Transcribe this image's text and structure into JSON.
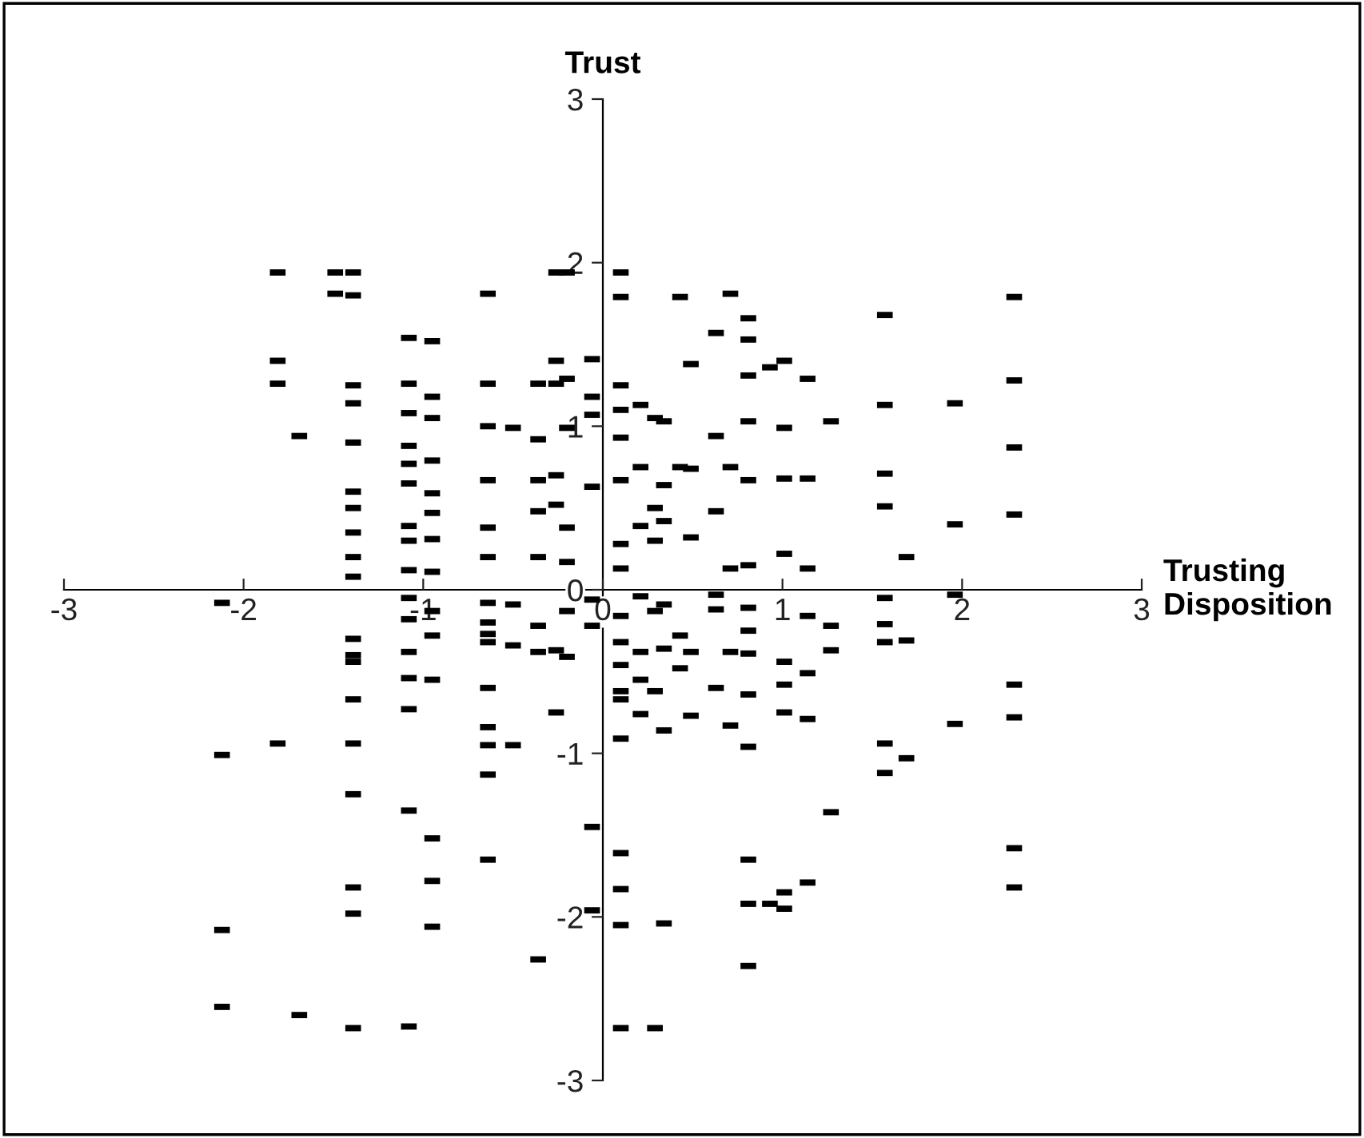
{
  "chart_data": {
    "type": "scatter",
    "xlabel": "Trusting\nDisposition",
    "ylabel": "Trust",
    "xlim": [
      -3,
      3
    ],
    "ylim": [
      -3,
      3
    ],
    "xticks": [
      -3,
      -2,
      -1,
      0,
      1,
      2,
      3
    ],
    "yticks": [
      -3,
      -2,
      -1,
      0,
      1,
      2,
      3
    ],
    "grid": false,
    "series": [
      {
        "color": "#000000",
        "x": [
          -2.12,
          -2.12,
          -2.12,
          -2.12,
          -1.81,
          -1.81,
          -1.81,
          -1.81,
          -1.69,
          -1.69,
          -1.49,
          -1.49,
          -1.39,
          -1.39,
          -1.39,
          -1.39,
          -1.39,
          -1.39,
          -1.39,
          -1.39,
          -1.39,
          -1.39,
          -1.39,
          -1.39,
          -1.39,
          -1.39,
          -1.39,
          -1.39,
          -1.39,
          -1.39,
          -1.39,
          -1.08,
          -1.08,
          -1.08,
          -1.08,
          -1.08,
          -1.08,
          -1.08,
          -1.08,
          -1.08,
          -1.08,
          -1.08,
          -1.08,
          -1.08,
          -1.08,
          -1.08,
          -1.08,
          -0.95,
          -0.95,
          -0.95,
          -0.95,
          -0.95,
          -0.95,
          -0.95,
          -0.95,
          -0.95,
          -0.95,
          -0.95,
          -0.95,
          -0.95,
          -0.95,
          -0.64,
          -0.64,
          -0.64,
          -0.64,
          -0.64,
          -0.64,
          -0.64,
          -0.64,
          -0.64,
          -0.64,
          -0.64,
          -0.64,
          -0.64,
          -0.64,
          -0.64,
          -0.5,
          -0.5,
          -0.5,
          -0.5,
          -0.36,
          -0.36,
          -0.36,
          -0.36,
          -0.36,
          -0.36,
          -0.36,
          -0.36,
          -0.26,
          -0.26,
          -0.26,
          -0.26,
          -0.26,
          -0.26,
          -0.26,
          -0.2,
          -0.2,
          -0.2,
          -0.2,
          -0.2,
          -0.2,
          -0.2,
          -0.06,
          -0.06,
          -0.06,
          -0.06,
          -0.06,
          -0.06,
          -0.06,
          -0.06,
          0.1,
          0.1,
          0.1,
          0.1,
          0.1,
          0.1,
          0.1,
          0.1,
          0.1,
          0.1,
          0.1,
          0.1,
          0.1,
          0.1,
          0.1,
          0.1,
          0.1,
          0.1,
          0.21,
          0.21,
          0.21,
          0.21,
          0.21,
          0.21,
          0.21,
          0.29,
          0.29,
          0.29,
          0.29,
          0.29,
          0.29,
          0.34,
          0.34,
          0.34,
          0.34,
          0.34,
          0.34,
          0.34,
          0.43,
          0.43,
          0.43,
          0.43,
          0.49,
          0.49,
          0.49,
          0.49,
          0.49,
          0.63,
          0.63,
          0.63,
          0.63,
          0.63,
          0.63,
          0.71,
          0.71,
          0.71,
          0.71,
          0.71,
          0.81,
          0.81,
          0.81,
          0.81,
          0.81,
          0.81,
          0.81,
          0.81,
          0.81,
          0.81,
          0.81,
          0.81,
          0.81,
          0.81,
          0.93,
          0.93,
          1.01,
          1.01,
          1.01,
          1.01,
          1.01,
          1.01,
          1.01,
          1.01,
          1.01,
          1.14,
          1.14,
          1.14,
          1.14,
          1.14,
          1.14,
          1.14,
          1.27,
          1.27,
          1.27,
          1.27,
          1.57,
          1.57,
          1.57,
          1.57,
          1.57,
          1.57,
          1.57,
          1.57,
          1.57,
          1.69,
          1.69,
          1.69,
          1.96,
          1.96,
          1.96,
          1.96,
          2.29,
          2.29,
          2.29,
          2.29,
          2.29,
          2.29,
          2.29,
          2.29
        ],
        "values": [
          -0.08,
          -1.01,
          -2.08,
          -2.55,
          1.94,
          1.4,
          1.26,
          -0.94,
          0.94,
          -2.6,
          1.94,
          1.81,
          1.94,
          1.8,
          1.25,
          1.14,
          0.9,
          0.6,
          0.5,
          0.35,
          0.2,
          0.08,
          -0.3,
          -0.4,
          -0.44,
          -0.67,
          -0.94,
          -1.25,
          -1.82,
          -1.98,
          -2.68,
          1.54,
          1.26,
          1.08,
          0.88,
          0.77,
          0.65,
          0.39,
          0.3,
          0.12,
          -0.05,
          -0.18,
          -0.38,
          -0.54,
          -0.73,
          -1.35,
          -2.67,
          1.52,
          1.18,
          1.05,
          0.79,
          0.59,
          0.47,
          0.31,
          0.11,
          -0.13,
          -0.28,
          -0.55,
          -1.52,
          -1.78,
          -2.06,
          1.81,
          1.26,
          1.0,
          0.67,
          0.38,
          0.2,
          -0.08,
          -0.2,
          -0.27,
          -0.32,
          -0.6,
          -0.84,
          -0.95,
          -1.13,
          -1.65,
          0.99,
          -0.09,
          -0.34,
          -0.95,
          1.26,
          0.92,
          0.67,
          0.48,
          0.2,
          -0.22,
          -0.38,
          -2.26,
          1.94,
          1.4,
          1.26,
          0.7,
          0.52,
          -0.37,
          -0.75,
          1.94,
          1.29,
          0.99,
          0.38,
          0.17,
          -0.13,
          -0.41,
          1.41,
          1.18,
          1.07,
          0.63,
          -0.06,
          -0.22,
          -1.45,
          -1.96,
          1.94,
          1.79,
          1.25,
          1.1,
          0.93,
          0.67,
          0.28,
          0.13,
          -0.16,
          -0.32,
          -0.46,
          -0.62,
          -0.67,
          -0.91,
          -1.61,
          -1.83,
          -2.05,
          -2.68,
          1.13,
          0.75,
          0.39,
          -0.04,
          -0.38,
          -0.55,
          -0.76,
          1.05,
          0.5,
          0.3,
          -0.13,
          -0.62,
          -2.68,
          1.03,
          0.64,
          0.42,
          -0.09,
          -0.36,
          -0.86,
          -2.04,
          1.79,
          0.75,
          -0.28,
          -0.48,
          1.38,
          0.74,
          0.32,
          -0.38,
          -0.77,
          1.57,
          0.94,
          0.48,
          -0.03,
          -0.12,
          -0.6,
          1.81,
          0.75,
          0.13,
          -0.38,
          -0.83,
          1.66,
          1.53,
          1.31,
          1.03,
          0.67,
          0.15,
          -0.11,
          -0.25,
          -0.39,
          -0.64,
          -0.96,
          -1.65,
          -1.92,
          -2.3,
          1.36,
          -1.92,
          1.4,
          0.99,
          0.68,
          0.22,
          -0.44,
          -0.58,
          -0.75,
          -1.85,
          -1.95,
          1.29,
          0.68,
          0.13,
          -0.16,
          -0.51,
          -0.79,
          -1.79,
          1.03,
          -0.22,
          -0.37,
          -1.36,
          1.68,
          1.13,
          0.71,
          0.51,
          -0.05,
          -0.21,
          -0.32,
          -0.94,
          -1.12,
          0.2,
          -0.31,
          -1.03,
          1.14,
          0.4,
          -0.03,
          -0.82,
          1.79,
          1.28,
          0.87,
          0.46,
          -0.58,
          -0.78,
          -1.58,
          -1.82
        ]
      }
    ]
  }
}
